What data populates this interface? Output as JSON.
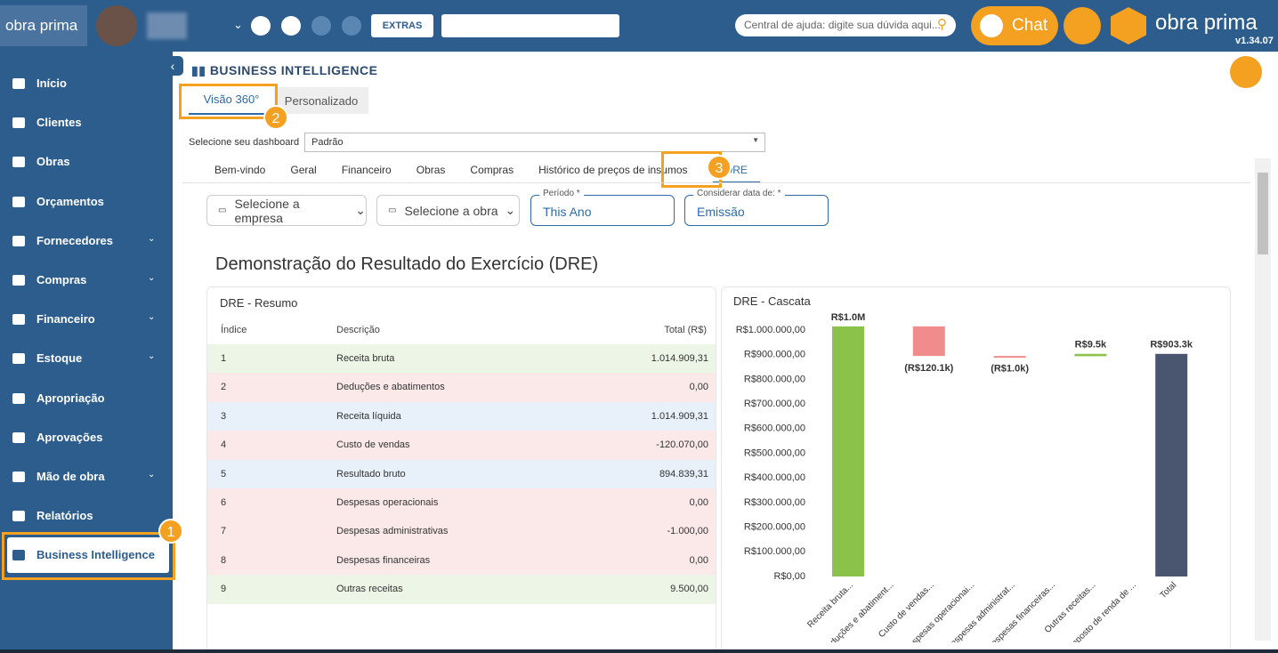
{
  "topbar": {
    "logo": "obra prima",
    "extras": "EXTRAS",
    "search_placeholder": "Central de ajuda: digite sua dúvida aqui...",
    "chat": "Chat",
    "brand": "obra prima",
    "version": "v1.34.07"
  },
  "sidebar": {
    "items": [
      {
        "label": "Início",
        "expandable": false
      },
      {
        "label": "Clientes",
        "expandable": false
      },
      {
        "label": "Obras",
        "expandable": false
      },
      {
        "label": "Orçamentos",
        "expandable": false
      },
      {
        "label": "Fornecedores",
        "expandable": true
      },
      {
        "label": "Compras",
        "expandable": true
      },
      {
        "label": "Financeiro",
        "expandable": true
      },
      {
        "label": "Estoque",
        "expandable": true
      },
      {
        "label": "Apropriação",
        "expandable": false
      },
      {
        "label": "Aprovações",
        "expandable": false
      },
      {
        "label": "Mão de obra",
        "expandable": true
      },
      {
        "label": "Relatórios",
        "expandable": false
      },
      {
        "label": "Business Intelligence",
        "expandable": false,
        "active": true
      }
    ]
  },
  "callouts": [
    "1",
    "2",
    "3"
  ],
  "page": {
    "title": "BUSINESS INTELLIGENCE",
    "tabs": [
      "Visão 360°",
      "Personalizado"
    ],
    "dashboard_label": "Selecione seu dashboard",
    "dashboard_value": "Padrão",
    "subtabs": [
      "Bem-vindo",
      "Geral",
      "Financeiro",
      "Obras",
      "Compras",
      "Histórico de preços de insumos",
      "DRE"
    ],
    "filters": {
      "company": "Selecione a empresa",
      "work": "Selecione a obra",
      "period_label": "Período *",
      "period_value": "This Ano",
      "date_label": "Considerar data de: *",
      "date_value": "Emissão"
    },
    "heading": "Demonstração do Resultado do Exercício (DRE)"
  },
  "table": {
    "title": "DRE - Resumo",
    "columns": [
      "Índice",
      "Descrição",
      "Total (R$)"
    ],
    "rows": [
      {
        "cells": [
          "1",
          "Receita bruta",
          "1.014.909,31"
        ],
        "color": "#edf5e6"
      },
      {
        "cells": [
          "2",
          "Deduções e abatimentos",
          "0,00"
        ],
        "color": "#fbe9ea"
      },
      {
        "cells": [
          "3",
          "Receita líquida",
          "1.014.909,31"
        ],
        "color": "#e8f1fa"
      },
      {
        "cells": [
          "4",
          "Custo de vendas",
          "-120.070,00"
        ],
        "color": "#fbe9ea"
      },
      {
        "cells": [
          "5",
          "Resultado bruto",
          "894.839,31"
        ],
        "color": "#e8f1fa"
      },
      {
        "cells": [
          "6",
          "Despesas operacionais",
          "0,00"
        ],
        "color": "#fbe9ea"
      },
      {
        "cells": [
          "7",
          "Despesas administrativas",
          "-1.000,00"
        ],
        "color": "#fbe9ea"
      },
      {
        "cells": [
          "8",
          "Despesas financeiras",
          "0,00"
        ],
        "color": "#fbe9ea"
      },
      {
        "cells": [
          "9",
          "Outras receitas",
          "9.500,00"
        ],
        "color": "#edf5e6"
      }
    ]
  },
  "chart_data": {
    "type": "waterfall",
    "title": "DRE - Cascata",
    "categories": [
      "Receita bruta...",
      "Deduções e abatiment...",
      "Custo de vendas...",
      "Despesas operacionai...",
      "Despesas administrat...",
      "Despesas financeiras...",
      "Outras receitas...",
      "Imposto de renda de ...",
      "Total"
    ],
    "values": [
      1014909.31,
      0,
      -120070,
      0,
      -1000,
      0,
      9500,
      0,
      903339.31
    ],
    "value_labels": [
      "R$1.0M",
      null,
      "(R$120.1k)",
      null,
      "(R$1.0k)",
      null,
      "R$9.5k",
      null,
      "R$903.3k"
    ],
    "colors": {
      "increase": "#8bc34a",
      "decrease": "#f08c8c",
      "total": "#4a5570"
    },
    "ylim": [
      0,
      1000000
    ],
    "yticks": [
      {
        "value": 0,
        "label": "R$0,00"
      },
      {
        "value": 100000,
        "label": "R$100.000,00"
      },
      {
        "value": 200000,
        "label": "R$200.000,00"
      },
      {
        "value": 300000,
        "label": "R$300.000,00"
      },
      {
        "value": 400000,
        "label": "R$400.000,00"
      },
      {
        "value": 500000,
        "label": "R$500.000,00"
      },
      {
        "value": 600000,
        "label": "R$600.000,00"
      },
      {
        "value": 700000,
        "label": "R$700.000,00"
      },
      {
        "value": 800000,
        "label": "R$800.000,00"
      },
      {
        "value": 900000,
        "label": "R$900.000,00"
      },
      {
        "value": 1000000,
        "label": "R$1.000.000,00"
      }
    ]
  }
}
